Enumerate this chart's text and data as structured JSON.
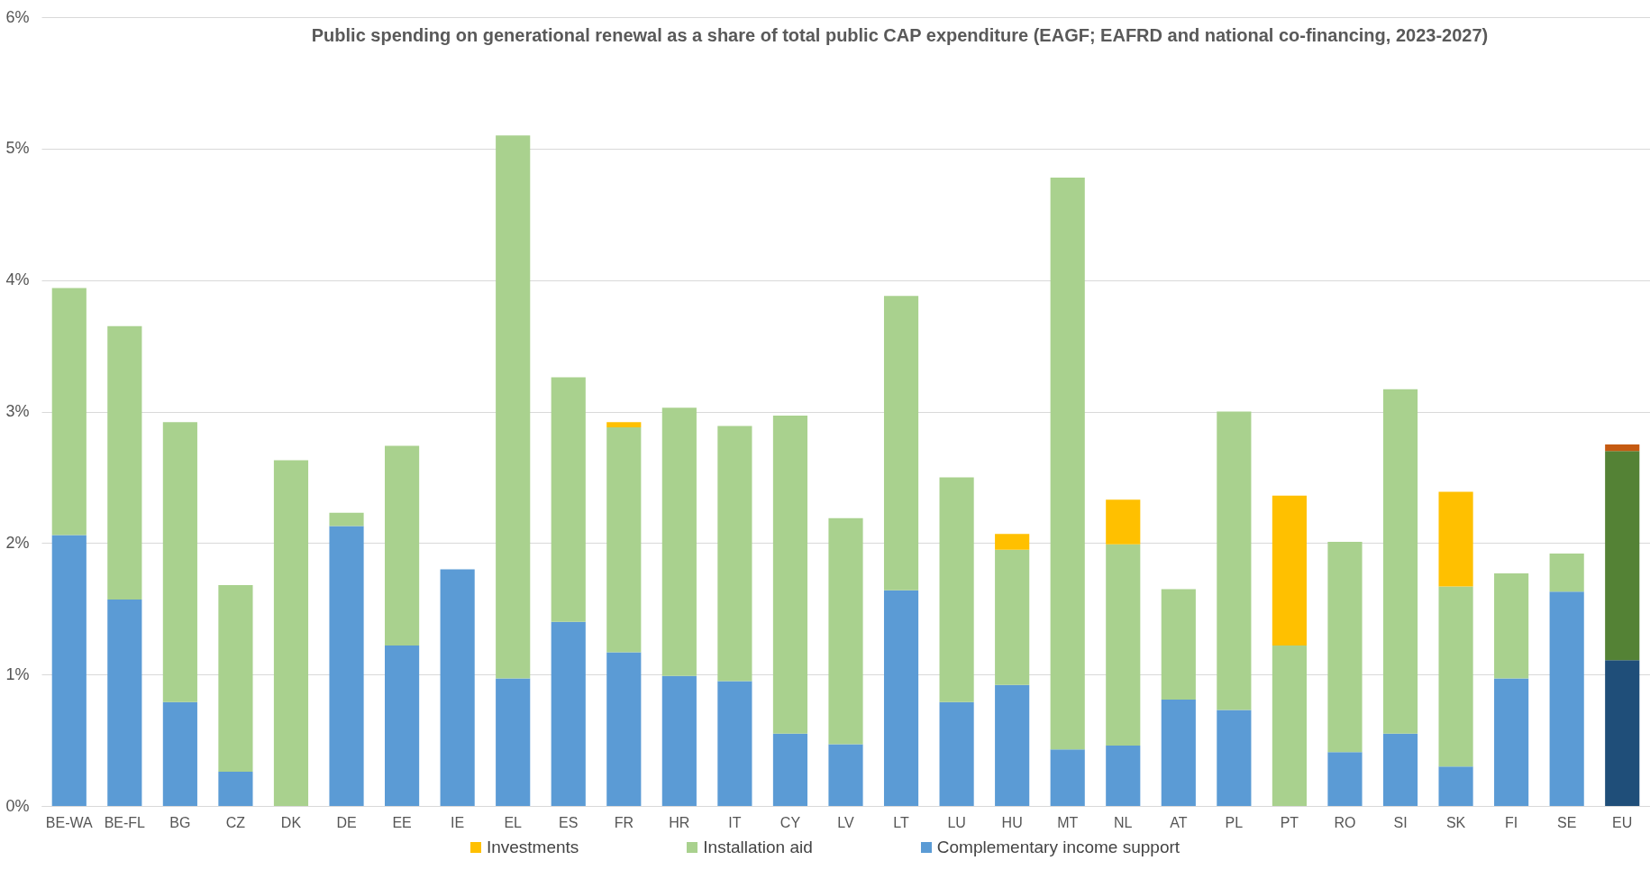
{
  "chart_data": {
    "type": "bar",
    "stacked": true,
    "title": "Public spending on generational renewal as a share of total public CAP expenditure (EAGF; EAFRD and national co-financing, 2023-2027)",
    "categories": [
      "BE-WA",
      "BE-FL",
      "BG",
      "CZ",
      "DK",
      "DE",
      "EE",
      "IE",
      "EL",
      "ES",
      "FR",
      "HR",
      "IT",
      "CY",
      "LV",
      "LT",
      "LU",
      "HU",
      "MT",
      "NL",
      "AT",
      "PL",
      "PT",
      "RO",
      "SI",
      "SK",
      "FI",
      "SE",
      "EU"
    ],
    "series": [
      {
        "name": "Complementary income support",
        "color": "#5b9bd5",
        "colors": [
          "#5b9bd5",
          "#5b9bd5",
          "#5b9bd5",
          "#5b9bd5",
          "#5b9bd5",
          "#5b9bd5",
          "#5b9bd5",
          "#5b9bd5",
          "#5b9bd5",
          "#5b9bd5",
          "#5b9bd5",
          "#5b9bd5",
          "#5b9bd5",
          "#5b9bd5",
          "#5b9bd5",
          "#5b9bd5",
          "#5b9bd5",
          "#5b9bd5",
          "#5b9bd5",
          "#5b9bd5",
          "#5b9bd5",
          "#5b9bd5",
          "#5b9bd5",
          "#5b9bd5",
          "#5b9bd5",
          "#5b9bd5",
          "#5b9bd5",
          "#5b9bd5",
          "#1f4e79"
        ],
        "values": [
          2.06,
          1.57,
          0.79,
          0.26,
          0,
          2.13,
          1.22,
          1.8,
          0.97,
          1.4,
          1.17,
          0.99,
          0.95,
          0.55,
          0.47,
          1.64,
          0.79,
          0.92,
          0.43,
          0.46,
          0.81,
          0.73,
          0,
          0.41,
          0.55,
          0.3,
          0.97,
          1.63,
          1.11
        ]
      },
      {
        "name": "Installation aid",
        "color": "#a9d18e",
        "colors": [
          "#a9d18e",
          "#a9d18e",
          "#a9d18e",
          "#a9d18e",
          "#a9d18e",
          "#a9d18e",
          "#a9d18e",
          "#a9d18e",
          "#a9d18e",
          "#a9d18e",
          "#a9d18e",
          "#a9d18e",
          "#a9d18e",
          "#a9d18e",
          "#a9d18e",
          "#a9d18e",
          "#a9d18e",
          "#a9d18e",
          "#a9d18e",
          "#a9d18e",
          "#a9d18e",
          "#a9d18e",
          "#a9d18e",
          "#a9d18e",
          "#a9d18e",
          "#a9d18e",
          "#a9d18e",
          "#a9d18e",
          "#548235"
        ],
        "values": [
          1.88,
          2.08,
          2.13,
          1.42,
          2.63,
          0.1,
          1.52,
          0,
          4.13,
          1.86,
          1.71,
          2.04,
          1.94,
          2.42,
          1.72,
          2.24,
          1.71,
          1.03,
          4.35,
          1.53,
          0.84,
          2.27,
          1.22,
          1.6,
          2.62,
          1.37,
          0.8,
          0.29,
          1.59
        ]
      },
      {
        "name": "Investments",
        "color": "#ffc000",
        "colors": [
          "#ffc000",
          "#ffc000",
          "#ffc000",
          "#ffc000",
          "#ffc000",
          "#ffc000",
          "#ffc000",
          "#ffc000",
          "#ffc000",
          "#ffc000",
          "#ffc000",
          "#ffc000",
          "#ffc000",
          "#ffc000",
          "#ffc000",
          "#ffc000",
          "#ffc000",
          "#ffc000",
          "#ffc000",
          "#ffc000",
          "#ffc000",
          "#ffc000",
          "#ffc000",
          "#ffc000",
          "#ffc000",
          "#ffc000",
          "#ffc000",
          "#ffc000",
          "#c55a11"
        ],
        "values": [
          0,
          0,
          0,
          0,
          0,
          0,
          0,
          0,
          0,
          0,
          0.04,
          0,
          0,
          0,
          0,
          0,
          0,
          0.12,
          0,
          0.34,
          0,
          0,
          1.14,
          0,
          0,
          0.72,
          0,
          0,
          0.05
        ]
      }
    ],
    "ylim": [
      0,
      6
    ],
    "yticks": [
      {
        "value": 0,
        "label": "0%"
      },
      {
        "value": 1,
        "label": "1%"
      },
      {
        "value": 2,
        "label": "2%"
      },
      {
        "value": 3,
        "label": "3%"
      },
      {
        "value": 4,
        "label": "4%"
      },
      {
        "value": 5,
        "label": "5%"
      },
      {
        "value": 6,
        "label": "6%"
      }
    ],
    "grid": "y",
    "legend": "bottom"
  }
}
